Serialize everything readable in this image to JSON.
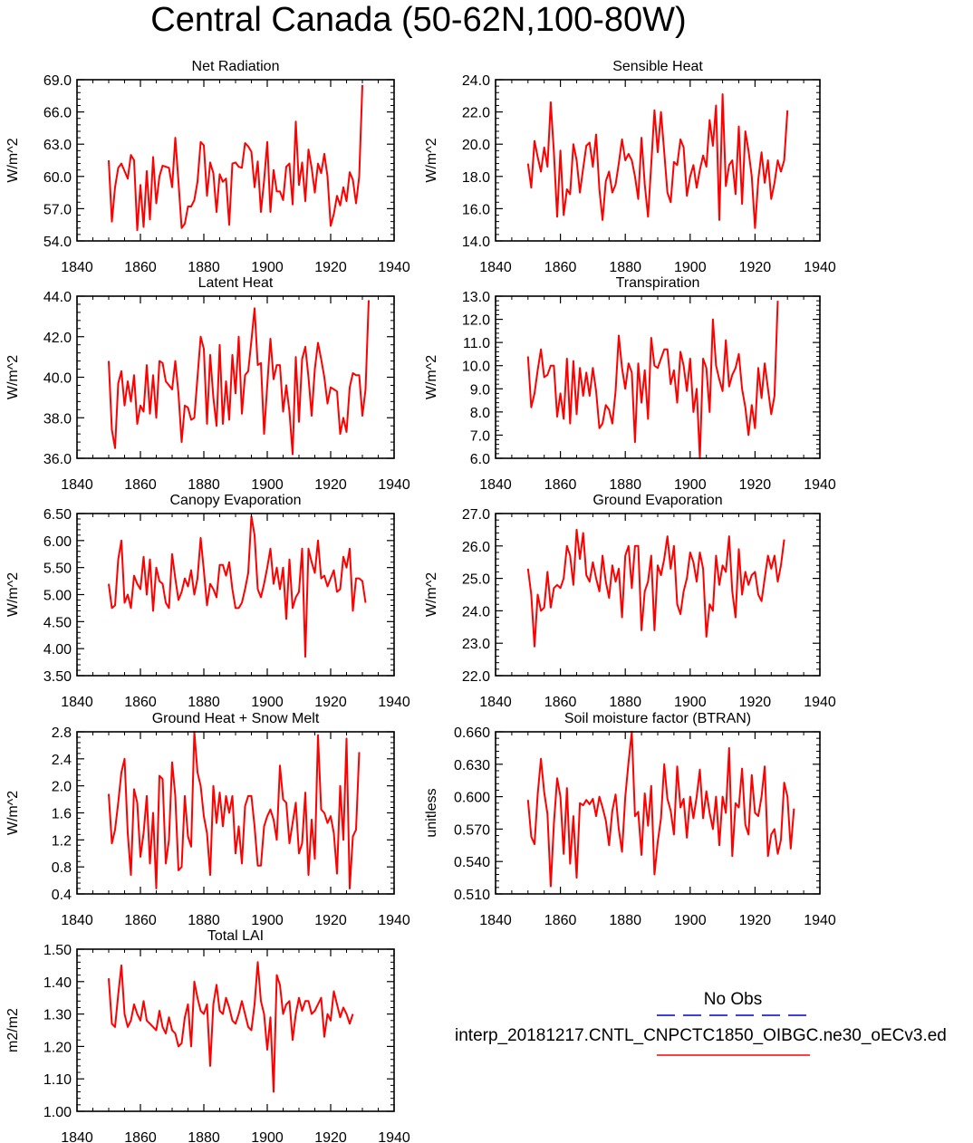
{
  "title": "Central Canada (50-62N,100-80W)",
  "legend": {
    "obs_label": "No Obs",
    "model_label": "interp_20181217.CNTL_CNPCTC1850_OIBGC.ne30_oECv3.ed",
    "obs_color": "#0000cc",
    "model_color": "#ff0000"
  },
  "chart_data": [
    {
      "type": "line",
      "title": "Net Radiation",
      "ylabel": "W/m^2",
      "xlim": [
        1840,
        1940
      ],
      "ylim": [
        54,
        69
      ],
      "xticks": [
        "1840",
        "1860",
        "1880",
        "1900",
        "1920",
        "1940"
      ],
      "yticks": [
        "54.0",
        "57.0",
        "60.0",
        "63.0",
        "66.0",
        "69.0"
      ],
      "x_start": 1850,
      "series": [
        {
          "color": "#ff0000",
          "values": [
            61.5,
            55.8,
            59.0,
            60.8,
            61.2,
            60.5,
            59.8,
            62.0,
            61.5,
            55.0,
            59.2,
            55.3,
            60.5,
            56.0,
            61.8,
            57.5,
            60.0,
            61.0,
            60.9,
            60.8,
            59.0,
            63.6,
            59.5,
            55.2,
            55.6,
            57.2,
            57.2,
            57.8,
            59.5,
            63.2,
            62.9,
            58.2,
            61.3,
            60.3,
            56.7,
            60.2,
            59.5,
            59.8,
            55.5,
            61.2,
            61.3,
            60.9,
            60.8,
            63.1,
            62.8,
            62.3,
            59.0,
            61.4,
            56.7,
            59.6,
            63.2,
            56.7,
            60.6,
            58.6,
            58.6,
            57.8,
            60.9,
            61.2,
            57.4,
            65.1,
            59.2,
            61.3,
            57.7,
            62.5,
            60.8,
            58.5,
            61.2,
            60.3,
            62.1,
            60.0,
            55.4,
            56.5,
            58.2,
            57.3,
            59.0,
            57.7,
            60.4,
            59.7,
            57.5,
            60.0,
            68.5
          ]
        }
      ]
    },
    {
      "type": "line",
      "title": "Sensible Heat",
      "ylabel": "W/m^2",
      "xlim": [
        1840,
        1940
      ],
      "ylim": [
        14,
        24
      ],
      "xticks": [
        "1840",
        "1860",
        "1880",
        "1900",
        "1920",
        "1940"
      ],
      "yticks": [
        "14.0",
        "16.0",
        "18.0",
        "20.0",
        "22.0",
        "24.0"
      ],
      "x_start": 1850,
      "series": [
        {
          "color": "#ff0000",
          "values": [
            18.8,
            17.3,
            20.2,
            19.2,
            18.3,
            19.8,
            18.6,
            22.6,
            19.5,
            15.5,
            19.6,
            15.6,
            17.2,
            16.9,
            20.0,
            19.0,
            17.0,
            18.5,
            19.9,
            20.1,
            18.6,
            20.6,
            17.2,
            15.3,
            17.7,
            18.3,
            17.0,
            17.5,
            18.8,
            20.3,
            19.0,
            19.4,
            19.0,
            18.0,
            16.6,
            20.4,
            17.5,
            15.5,
            18.7,
            22.1,
            19.5,
            22.0,
            19.5,
            17.0,
            16.4,
            18.9,
            18.7,
            20.3,
            19.8,
            16.8,
            18.0,
            18.7,
            17.3,
            18.4,
            19.3,
            18.6,
            21.5,
            19.9,
            22.4,
            15.3,
            23.1,
            17.4,
            18.7,
            19.0,
            16.9,
            21.1,
            16.3,
            20.8,
            19.6,
            18.0,
            14.8,
            17.8,
            19.5,
            17.6,
            19.0,
            16.6,
            17.6,
            19.0,
            18.3,
            19.0,
            22.1
          ]
        }
      ]
    },
    {
      "type": "line",
      "title": "Latent Heat",
      "ylabel": "W/m^2",
      "xlim": [
        1840,
        1940
      ],
      "ylim": [
        36,
        44
      ],
      "xticks": [
        "1840",
        "1860",
        "1880",
        "1900",
        "1920",
        "1940"
      ],
      "yticks": [
        "36.0",
        "38.0",
        "40.0",
        "42.0",
        "44.0"
      ],
      "x_start": 1850,
      "series": [
        {
          "color": "#ff0000",
          "values": [
            40.8,
            37.4,
            36.5,
            39.7,
            40.3,
            38.6,
            39.8,
            38.8,
            40.1,
            37.7,
            38.6,
            38.3,
            40.6,
            38.2,
            40.1,
            38.0,
            40.8,
            40.7,
            39.8,
            39.6,
            39.4,
            40.8,
            39.2,
            36.8,
            38.6,
            38.5,
            37.9,
            38.0,
            40.0,
            42.0,
            41.4,
            37.7,
            41.1,
            39.0,
            37.6,
            41.6,
            37.7,
            39.8,
            37.9,
            41.1,
            39.2,
            42.0,
            38.2,
            40.1,
            40.3,
            41.8,
            43.4,
            40.6,
            40.7,
            37.2,
            39.6,
            41.9,
            39.9,
            40.6,
            40.6,
            38.3,
            39.6,
            38.3,
            36.2,
            41.0,
            37.8,
            40.9,
            41.5,
            40.0,
            38.1,
            40.4,
            41.7,
            40.9,
            40.0,
            38.7,
            39.5,
            39.4,
            39.3,
            37.2,
            38.0,
            37.3,
            39.5,
            40.2,
            40.1,
            40.1,
            38.1,
            39.4,
            43.8
          ]
        }
      ]
    },
    {
      "type": "line",
      "title": "Transpiration",
      "ylabel": "W/m^2",
      "xlim": [
        1840,
        1940
      ],
      "ylim": [
        6,
        13
      ],
      "xticks": [
        "1840",
        "1860",
        "1880",
        "1900",
        "1920",
        "1940"
      ],
      "yticks": [
        "6.0",
        "7.0",
        "8.0",
        "9.0",
        "10.0",
        "11.0",
        "12.0",
        "13.0"
      ],
      "x_start": 1850,
      "series": [
        {
          "color": "#ff0000",
          "values": [
            10.4,
            8.2,
            8.8,
            9.8,
            10.7,
            9.5,
            9.6,
            10.0,
            10.0,
            7.8,
            8.8,
            7.7,
            10.3,
            7.5,
            10.2,
            7.9,
            9.9,
            8.7,
            9.7,
            8.7,
            9.9,
            8.9,
            7.3,
            7.5,
            8.3,
            8.1,
            7.5,
            8.9,
            11.3,
            9.9,
            9.0,
            10.1,
            9.7,
            6.7,
            10.1,
            8.4,
            9.8,
            7.7,
            11.2,
            10.0,
            9.9,
            10.3,
            10.7,
            10.7,
            9.2,
            9.8,
            8.4,
            10.6,
            10.0,
            8.9,
            10.3,
            8.0,
            9.0,
            6.0,
            10.3,
            9.9,
            8.0,
            12.0,
            10.0,
            9.4,
            8.9,
            11.1,
            9.1,
            9.6,
            9.9,
            10.5,
            9.0,
            8.2,
            7.0,
            8.3,
            7.3,
            9.9,
            8.6,
            10.1,
            9.0,
            7.9,
            8.7,
            12.8
          ]
        }
      ]
    },
    {
      "type": "line",
      "title": "Canopy Evaporation",
      "ylabel": "W/m^2",
      "xlim": [
        1840,
        1940
      ],
      "ylim": [
        3.5,
        6.5
      ],
      "xticks": [
        "1840",
        "1860",
        "1880",
        "1900",
        "1920",
        "1940"
      ],
      "yticks": [
        "3.50",
        "4.00",
        "4.50",
        "5.00",
        "5.50",
        "6.00",
        "6.50"
      ],
      "x_start": 1850,
      "series": [
        {
          "color": "#ff0000",
          "values": [
            5.2,
            4.75,
            4.8,
            5.65,
            6.0,
            4.85,
            5.0,
            4.75,
            5.35,
            5.2,
            5.1,
            5.7,
            5.0,
            5.65,
            4.7,
            5.5,
            5.25,
            5.2,
            4.85,
            4.75,
            5.75,
            5.3,
            4.9,
            5.05,
            5.3,
            5.15,
            5.45,
            5.0,
            5.3,
            6.05,
            5.45,
            4.8,
            5.2,
            5.1,
            4.95,
            5.55,
            5.55,
            5.35,
            5.6,
            5.1,
            4.75,
            4.75,
            4.85,
            5.1,
            5.4,
            6.45,
            6.1,
            5.1,
            4.95,
            5.2,
            5.5,
            5.85,
            5.2,
            5.5,
            5.1,
            5.5,
            4.55,
            5.65,
            4.75,
            4.95,
            5.05,
            5.85,
            3.85,
            5.85,
            5.6,
            5.4,
            6.0,
            5.3,
            5.35,
            5.15,
            5.3,
            5.45,
            5.05,
            5.1,
            5.7,
            5.5,
            5.85,
            4.7,
            5.3,
            5.3,
            5.25,
            4.85
          ]
        }
      ]
    },
    {
      "type": "line",
      "title": "Ground Evaporation",
      "ylabel": "W/m^2",
      "xlim": [
        1840,
        1940
      ],
      "ylim": [
        22,
        27
      ],
      "xticks": [
        "1840",
        "1860",
        "1880",
        "1900",
        "1920",
        "1940"
      ],
      "yticks": [
        "22.0",
        "23.0",
        "24.0",
        "25.0",
        "26.0",
        "27.0"
      ],
      "x_start": 1850,
      "series": [
        {
          "color": "#ff0000",
          "values": [
            25.3,
            24.5,
            22.9,
            24.5,
            24.0,
            24.1,
            25.2,
            24.1,
            24.7,
            24.8,
            24.7,
            25.0,
            26.0,
            25.7,
            24.8,
            26.5,
            25.6,
            26.4,
            25.1,
            24.9,
            25.5,
            25.0,
            24.6,
            25.7,
            24.9,
            24.4,
            25.4,
            24.9,
            25.3,
            23.8,
            25.7,
            26.0,
            24.7,
            26.0,
            26.0,
            23.4,
            24.6,
            24.9,
            25.7,
            23.4,
            25.4,
            25.1,
            25.6,
            26.3,
            25.3,
            26.0,
            24.2,
            23.9,
            24.6,
            25.0,
            25.8,
            25.5,
            24.9,
            25.8,
            25.3,
            23.2,
            24.2,
            24.0,
            25.7,
            24.8,
            25.4,
            25.2,
            26.3,
            24.6,
            23.8,
            25.9,
            24.5,
            25.2,
            24.8,
            25.1,
            25.2,
            24.5,
            24.3,
            25.0,
            25.7,
            25.3,
            25.7,
            24.9,
            25.4,
            26.2
          ]
        }
      ]
    },
    {
      "type": "line",
      "title": "Ground Heat + Snow Melt",
      "ylabel": "W/m^2",
      "xlim": [
        1840,
        1940
      ],
      "ylim": [
        0.4,
        2.8
      ],
      "xticks": [
        "1840",
        "1860",
        "1880",
        "1900",
        "1920",
        "1940"
      ],
      "yticks": [
        "0.4",
        "0.8",
        "1.2",
        "1.6",
        "2.0",
        "2.4",
        "2.8"
      ],
      "x_start": 1850,
      "series": [
        {
          "color": "#ff0000",
          "values": [
            1.88,
            1.15,
            1.35,
            1.75,
            2.2,
            2.4,
            1.3,
            0.68,
            1.95,
            1.75,
            0.95,
            1.3,
            1.85,
            0.85,
            1.6,
            0.48,
            2.15,
            2.1,
            0.85,
            1.2,
            2.35,
            1.85,
            0.75,
            0.8,
            1.85,
            1.25,
            1.1,
            2.8,
            2.2,
            2.0,
            1.55,
            1.3,
            0.68,
            2.0,
            1.45,
            1.9,
            1.4,
            1.85,
            1.6,
            1.85,
            1.0,
            1.4,
            0.85,
            1.7,
            1.85,
            1.85,
            1.4,
            0.82,
            0.82,
            1.4,
            1.55,
            1.65,
            1.5,
            1.2,
            2.3,
            1.8,
            1.75,
            1.15,
            1.45,
            1.75,
            1.0,
            1.15,
            1.9,
            0.68,
            1.5,
            0.92,
            2.75,
            1.65,
            1.6,
            1.45,
            1.55,
            1.3,
            0.7,
            2.0,
            1.2,
            2.7,
            0.48,
            1.25,
            1.35,
            2.5
          ]
        }
      ]
    },
    {
      "type": "line",
      "title": "Soil moisture factor (BTRAN)",
      "ylabel": "unitless",
      "xlim": [
        1840,
        1940
      ],
      "ylim": [
        0.51,
        0.66
      ],
      "xticks": [
        "1840",
        "1860",
        "1880",
        "1900",
        "1920",
        "1940"
      ],
      "yticks": [
        "0.510",
        "0.540",
        "0.570",
        "0.600",
        "0.630",
        "0.660"
      ],
      "x_start": 1850,
      "series": [
        {
          "color": "#ff0000",
          "values": [
            0.597,
            0.563,
            0.556,
            0.602,
            0.635,
            0.604,
            0.584,
            0.517,
            0.575,
            0.617,
            0.6,
            0.547,
            0.608,
            0.538,
            0.582,
            0.525,
            0.594,
            0.592,
            0.597,
            0.593,
            0.598,
            0.582,
            0.6,
            0.59,
            0.578,
            0.555,
            0.587,
            0.602,
            0.57,
            0.549,
            0.6,
            0.632,
            0.66,
            0.582,
            0.586,
            0.546,
            0.603,
            0.573,
            0.61,
            0.528,
            0.558,
            0.58,
            0.63,
            0.598,
            0.587,
            0.565,
            0.628,
            0.59,
            0.598,
            0.562,
            0.6,
            0.58,
            0.6,
            0.625,
            0.58,
            0.605,
            0.585,
            0.57,
            0.6,
            0.555,
            0.6,
            0.585,
            0.645,
            0.545,
            0.594,
            0.59,
            0.626,
            0.574,
            0.565,
            0.62,
            0.585,
            0.582,
            0.6,
            0.628,
            0.545,
            0.565,
            0.57,
            0.547,
            0.56,
            0.613,
            0.6,
            0.552,
            0.589
          ]
        }
      ]
    },
    {
      "type": "line",
      "title": "Total LAI",
      "ylabel": "m2/m2",
      "xlim": [
        1840,
        1940
      ],
      "ylim": [
        1.0,
        1.5
      ],
      "xticks": [
        "1840",
        "1860",
        "1880",
        "1900",
        "1920",
        "1940"
      ],
      "yticks": [
        "1.00",
        "1.10",
        "1.20",
        "1.30",
        "1.40",
        "1.50"
      ],
      "x_start": 1850,
      "series": [
        {
          "color": "#ff0000",
          "values": [
            1.41,
            1.27,
            1.26,
            1.36,
            1.45,
            1.3,
            1.26,
            1.28,
            1.33,
            1.3,
            1.28,
            1.34,
            1.28,
            1.27,
            1.26,
            1.25,
            1.31,
            1.26,
            1.24,
            1.29,
            1.25,
            1.24,
            1.2,
            1.21,
            1.29,
            1.33,
            1.2,
            1.4,
            1.35,
            1.31,
            1.3,
            1.33,
            1.14,
            1.33,
            1.39,
            1.31,
            1.3,
            1.35,
            1.32,
            1.28,
            1.27,
            1.3,
            1.34,
            1.3,
            1.26,
            1.25,
            1.33,
            1.46,
            1.34,
            1.3,
            1.19,
            1.29,
            1.06,
            1.42,
            1.39,
            1.3,
            1.33,
            1.34,
            1.22,
            1.3,
            1.35,
            1.31,
            1.34,
            1.34,
            1.3,
            1.31,
            1.33,
            1.35,
            1.23,
            1.3,
            1.28,
            1.37,
            1.33,
            1.29,
            1.32,
            1.3,
            1.27,
            1.3
          ]
        }
      ]
    }
  ]
}
